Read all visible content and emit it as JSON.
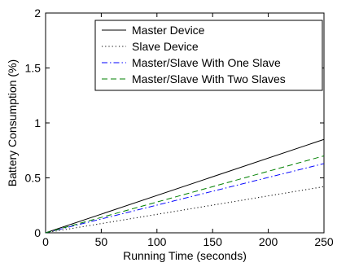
{
  "chart_data": {
    "type": "line",
    "title": "",
    "xlabel": "Running Time (seconds)",
    "ylabel": "Battery Consumption (%)",
    "xlim": [
      0,
      250
    ],
    "ylim": [
      0,
      2
    ],
    "xticks": [
      0,
      50,
      100,
      150,
      200,
      250
    ],
    "yticks": [
      0,
      0.5,
      1,
      1.5,
      2
    ],
    "xtick_labels": [
      "0",
      "50",
      "100",
      "150",
      "200",
      "250"
    ],
    "ytick_labels": [
      "0",
      "0.5",
      "1",
      "1.5",
      "2"
    ],
    "grid": false,
    "legend_position": "top-right",
    "series": [
      {
        "name": "Master Device",
        "x": [
          0,
          250
        ],
        "y": [
          0,
          0.85
        ],
        "color": "#000000",
        "style": "solid"
      },
      {
        "name": "Slave Device",
        "x": [
          0,
          250
        ],
        "y": [
          0,
          0.42
        ],
        "color": "#000000",
        "style": "dotted"
      },
      {
        "name": "Master/Slave With One Slave",
        "x": [
          0,
          250
        ],
        "y": [
          0,
          0.63
        ],
        "color": "#0000ff",
        "style": "dashdot"
      },
      {
        "name": "Master/Slave With Two Slaves",
        "x": [
          0,
          250
        ],
        "y": [
          0,
          0.7
        ],
        "color": "#008000",
        "style": "dashed"
      }
    ]
  }
}
